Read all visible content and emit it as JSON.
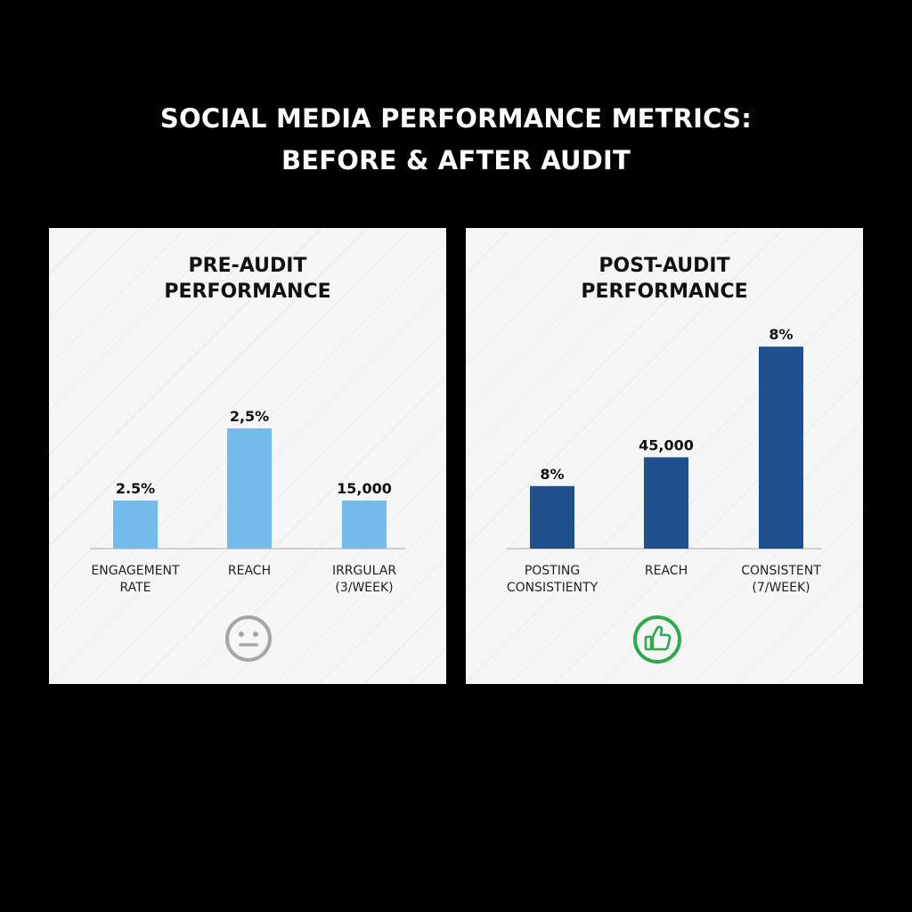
{
  "title_lines": [
    "SOCIAL MEDIA PERFORMANCE METRICS:",
    "BEFORE & AFTER AUDIT"
  ],
  "colors": {
    "pre_bar": "#72bbea",
    "post_bar": "#1f4f8c",
    "baseline": "#c4c4c4",
    "neutral_icon": "#a6a6a6",
    "positive_icon": "#2fa84f"
  },
  "icons": {
    "pre": "neutral-face-icon",
    "post": "thumbs-up-icon"
  },
  "chart_data": [
    {
      "type": "bar",
      "title_lines": [
        "PRE-AUDIT",
        "PERFORMANCE"
      ],
      "categories": [
        [
          "ENGAGEMENT",
          "RATE"
        ],
        [
          "REACH"
        ],
        [
          "IRRGULAR",
          "(3/WEEK)"
        ]
      ],
      "value_labels": [
        "2.5%",
        "2,5%",
        "15,000"
      ],
      "heights": [
        1.0,
        2.5,
        1.0
      ],
      "color": "#72bbea"
    },
    {
      "type": "bar",
      "title_lines": [
        "POST-AUDIT",
        "PERFORMANCE"
      ],
      "categories": [
        [
          "POSTING",
          "CONSISTIENTY"
        ],
        [
          "REACH"
        ],
        [
          "CONSISTENT",
          "(7/WEEK)"
        ]
      ],
      "value_labels": [
        "8%",
        "45,000",
        "8%"
      ],
      "heights": [
        1.3,
        1.9,
        4.2
      ],
      "color": "#1f4f8c"
    }
  ]
}
